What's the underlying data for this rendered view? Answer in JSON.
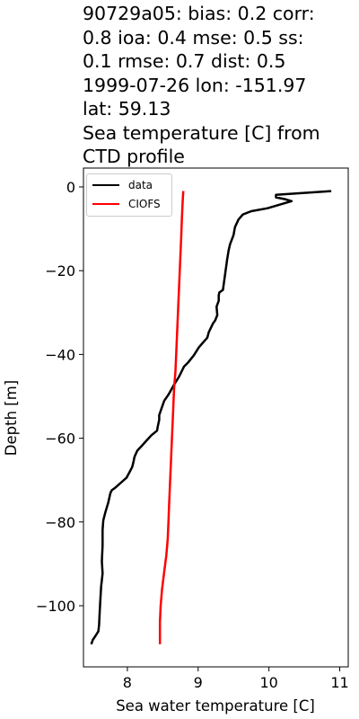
{
  "title_lines": [
    "90729a05: bias: 0.2  corr:",
    "0.8  ioa: 0.4  mse: 0.5  ss:",
    "0.1  rmse: 0.7  dist: 0.5",
    "1999-07-26 lon: -151.97",
    "lat: 59.13",
    "Sea temperature [C] from",
    "CTD profile"
  ],
  "chart_data": {
    "type": "line",
    "xlabel": "Sea water temperature [C]",
    "ylabel": "Depth [m]",
    "xlim": [
      7.38,
      11.12
    ],
    "ylim": [
      -114.6,
      4.5
    ],
    "xticks": [
      8,
      9,
      10,
      11
    ],
    "yticks": [
      0,
      -20,
      -40,
      -60,
      -80,
      -100
    ],
    "xtick_labels": [
      "8",
      "9",
      "10",
      "11"
    ],
    "ytick_labels": [
      "0",
      "−20",
      "−40",
      "−60",
      "−80",
      "−100"
    ],
    "legend_position": "top-left",
    "series": [
      {
        "name": "data",
        "color": "#000000",
        "points": [
          [
            10.88,
            -1
          ],
          [
            10.1,
            -1.9
          ],
          [
            10.1,
            -2.5
          ],
          [
            10.22,
            -2.9
          ],
          [
            10.32,
            -3.4
          ],
          [
            9.98,
            -5.1
          ],
          [
            9.75,
            -5.8
          ],
          [
            9.63,
            -6.6
          ],
          [
            9.57,
            -7.8
          ],
          [
            9.52,
            -9.6
          ],
          [
            9.5,
            -11.5
          ],
          [
            9.48,
            -12.4
          ],
          [
            9.45,
            -13.7
          ],
          [
            9.43,
            -15.2
          ],
          [
            9.41,
            -17.3
          ],
          [
            9.4,
            -18.6
          ],
          [
            9.39,
            -19.8
          ],
          [
            9.37,
            -22.1
          ],
          [
            9.35,
            -24.6
          ],
          [
            9.3,
            -25.2
          ],
          [
            9.29,
            -25.9
          ],
          [
            9.29,
            -27.2
          ],
          [
            9.26,
            -28.6
          ],
          [
            9.27,
            -30.6
          ],
          [
            9.24,
            -31.9
          ],
          [
            9.21,
            -32.6
          ],
          [
            9.15,
            -34.7
          ],
          [
            9.13,
            -36.0
          ],
          [
            9.01,
            -38.3
          ],
          [
            8.94,
            -40.2
          ],
          [
            8.86,
            -41.9
          ],
          [
            8.8,
            -42.9
          ],
          [
            8.73,
            -45.3
          ],
          [
            8.66,
            -47.2
          ],
          [
            8.58,
            -49.6
          ],
          [
            8.52,
            -51.1
          ],
          [
            8.48,
            -53.0
          ],
          [
            8.45,
            -54.5
          ],
          [
            8.45,
            -55.6
          ],
          [
            8.43,
            -57.2
          ],
          [
            8.42,
            -58.2
          ],
          [
            8.34,
            -59.3
          ],
          [
            8.28,
            -60.4
          ],
          [
            8.21,
            -61.7
          ],
          [
            8.14,
            -63.0
          ],
          [
            8.1,
            -64.5
          ],
          [
            8.09,
            -65.4
          ],
          [
            8.07,
            -66.8
          ],
          [
            8.04,
            -67.8
          ],
          [
            7.99,
            -69.4
          ],
          [
            7.91,
            -70.6
          ],
          [
            7.83,
            -71.8
          ],
          [
            7.78,
            -72.4
          ],
          [
            7.76,
            -73.1
          ],
          [
            7.73,
            -75.4
          ],
          [
            7.69,
            -77.6
          ],
          [
            7.66,
            -79.6
          ],
          [
            7.65,
            -81.9
          ],
          [
            7.65,
            -85.6
          ],
          [
            7.64,
            -89.4
          ],
          [
            7.65,
            -92.3
          ],
          [
            7.63,
            -95.4
          ],
          [
            7.62,
            -98.3
          ],
          [
            7.61,
            -101.4
          ],
          [
            7.6,
            -104.6
          ],
          [
            7.59,
            -106.1
          ],
          [
            7.55,
            -107.2
          ],
          [
            7.51,
            -108.2
          ],
          [
            7.49,
            -109.2
          ]
        ]
      },
      {
        "name": "CIOFS",
        "color": "#ff0000",
        "points": [
          [
            8.79,
            -1
          ],
          [
            8.78,
            -4
          ],
          [
            8.77,
            -8
          ],
          [
            8.76,
            -12
          ],
          [
            8.75,
            -16
          ],
          [
            8.74,
            -20
          ],
          [
            8.73,
            -24
          ],
          [
            8.72,
            -28
          ],
          [
            8.71,
            -32
          ],
          [
            8.7,
            -36
          ],
          [
            8.69,
            -40
          ],
          [
            8.68,
            -44
          ],
          [
            8.66,
            -48
          ],
          [
            8.65,
            -52
          ],
          [
            8.64,
            -56
          ],
          [
            8.63,
            -60
          ],
          [
            8.62,
            -64
          ],
          [
            8.61,
            -68
          ],
          [
            8.6,
            -72
          ],
          [
            8.59,
            -76
          ],
          [
            8.58,
            -80
          ],
          [
            8.57,
            -84
          ],
          [
            8.55,
            -88
          ],
          [
            8.52,
            -92
          ],
          [
            8.49,
            -96
          ],
          [
            8.47,
            -100
          ],
          [
            8.46,
            -104
          ],
          [
            8.46,
            -107
          ],
          [
            8.46,
            -109.2
          ]
        ]
      }
    ]
  }
}
